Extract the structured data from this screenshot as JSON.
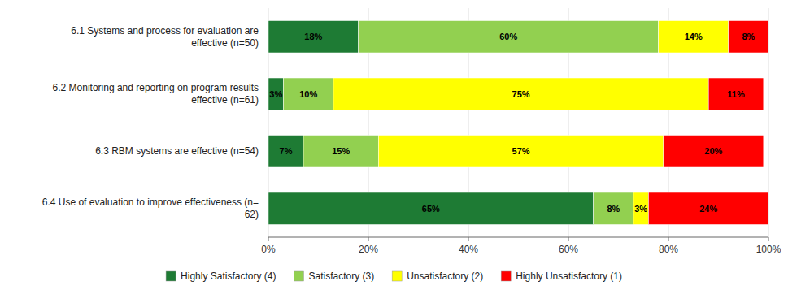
{
  "chart_data": {
    "type": "bar",
    "orientation": "horizontal",
    "stacked": true,
    "data_labels": true,
    "grid": true,
    "legend": "bottom",
    "categories": [
      "6.1 Systems and process for evaluation are\neffective (n=50)",
      "6.2 Monitoring and reporting on program results\neffective (n=61)",
      "6.3 RBM systems are effective (n=54)",
      "6.4 Use of evaluation to improve effectiveness (n=\n62)"
    ],
    "series": [
      {
        "name": "Highly Satisfactory (4)",
        "color": "#1e7b34",
        "values": [
          18,
          3,
          7,
          65
        ],
        "value_labels": [
          "18%",
          "3%",
          "7%",
          "65%"
        ]
      },
      {
        "name": "Satisfactory (3)",
        "color": "#92d050",
        "values": [
          60,
          10,
          15,
          8
        ],
        "value_labels": [
          "60%",
          "10%",
          "15%",
          "8%"
        ]
      },
      {
        "name": "Unsatisfactory (2)",
        "color": "#ffff00",
        "values": [
          14,
          75,
          57,
          3
        ],
        "value_labels": [
          "14%",
          "75%",
          "57%",
          "3%"
        ]
      },
      {
        "name": "Highly Unsatisfactory (1)",
        "color": "#ff0000",
        "values": [
          8,
          11,
          20,
          24
        ],
        "value_labels": [
          "8%",
          "11%",
          "20%",
          "24%"
        ]
      }
    ],
    "xlim": [
      0,
      100
    ],
    "xticks": [
      {
        "value": 0,
        "label": "0%"
      },
      {
        "value": 20,
        "label": "20%"
      },
      {
        "value": 40,
        "label": "40%"
      },
      {
        "value": 60,
        "label": "60%"
      },
      {
        "value": 80,
        "label": "80%"
      },
      {
        "value": 100,
        "label": "100%"
      }
    ]
  }
}
